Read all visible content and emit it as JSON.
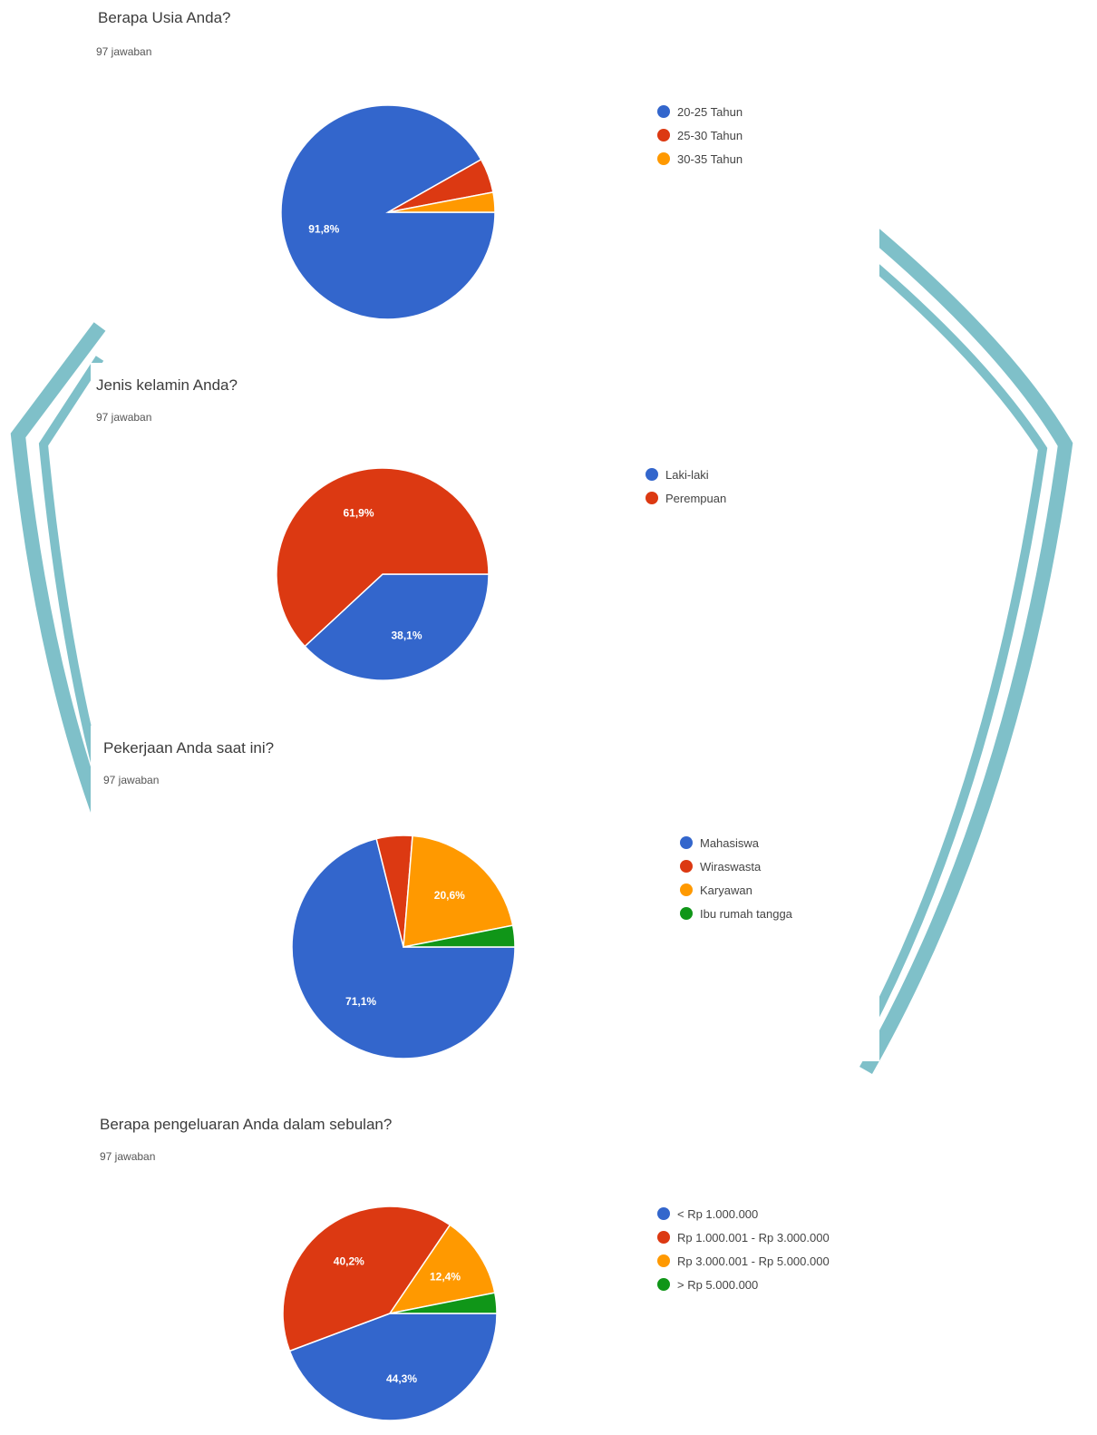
{
  "colors": {
    "blue": "#3366cc",
    "red": "#dc3912",
    "orange": "#ff9900",
    "green": "#109618",
    "teal": "#7fc0c9"
  },
  "questions": [
    {
      "title": "Berapa Usia Anda?",
      "responses": "97 jawaban"
    },
    {
      "title": "Jenis kelamin Anda?",
      "responses": "97 jawaban"
    },
    {
      "title": "Pekerjaan Anda saat ini?",
      "responses": "97 jawaban"
    },
    {
      "title": "Berapa pengeluaran Anda dalam sebulan?",
      "responses": "97 jawaban"
    }
  ],
  "chart_data": [
    {
      "type": "pie",
      "title": "Berapa Usia Anda?",
      "start_angle_deg": 0,
      "categories": [
        "20-25 Tahun",
        "25-30 Tahun",
        "30-35 Tahun"
      ],
      "values": [
        91.8,
        5.2,
        3.0
      ],
      "colors": [
        "#3366cc",
        "#dc3912",
        "#ff9900"
      ],
      "slice_labels": [
        "91,8%",
        "",
        ""
      ],
      "legend": "right"
    },
    {
      "type": "pie",
      "title": "Jenis kelamin Anda?",
      "start_angle_deg": 0,
      "categories": [
        "Laki-laki",
        "Perempuan"
      ],
      "values": [
        38.1,
        61.9
      ],
      "colors": [
        "#3366cc",
        "#dc3912"
      ],
      "slice_labels": [
        "38,1%",
        "61,9%"
      ],
      "legend": "right"
    },
    {
      "type": "pie",
      "title": "Pekerjaan Anda saat ini?",
      "start_angle_deg": 0,
      "categories": [
        "Mahasiswa",
        "Wiraswasta",
        "Karyawan",
        "Ibu rumah tangga"
      ],
      "values": [
        71.1,
        5.2,
        20.6,
        3.1
      ],
      "colors": [
        "#3366cc",
        "#dc3912",
        "#ff9900",
        "#109618"
      ],
      "slice_labels": [
        "71,1%",
        "",
        "20,6%",
        ""
      ],
      "legend": "right"
    },
    {
      "type": "pie",
      "title": "Berapa pengeluaran Anda dalam sebulan?",
      "start_angle_deg": 0,
      "categories": [
        "< Rp 1.000.000",
        "Rp 1.000.001 - Rp 3.000.000",
        "Rp 3.000.001 - Rp 5.000.000",
        "> Rp 5.000.000"
      ],
      "values": [
        44.3,
        40.2,
        12.4,
        3.1
      ],
      "colors": [
        "#3366cc",
        "#dc3912",
        "#ff9900",
        "#109618"
      ],
      "slice_labels": [
        "44,3%",
        "40,2%",
        "12,4%",
        ""
      ],
      "legend": "right"
    }
  ]
}
